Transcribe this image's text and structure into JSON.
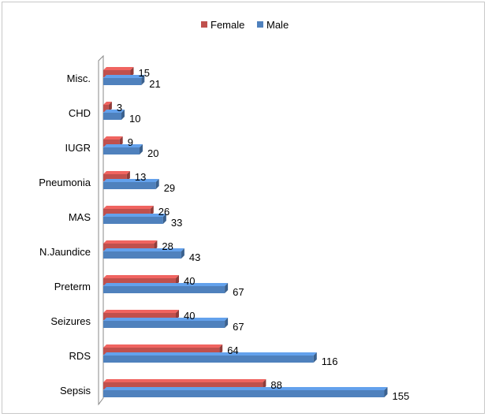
{
  "chart_data": {
    "type": "bar",
    "orientation": "horizontal",
    "categories": [
      "Sepsis",
      "RDS",
      "Seizures",
      "Preterm",
      "N.Jaundice",
      "MAS",
      "Pneumonia",
      "IUGR",
      "CHD",
      "Misc."
    ],
    "series": [
      {
        "name": "Female",
        "color": "#c0504d",
        "values": [
          88,
          64,
          40,
          40,
          28,
          26,
          13,
          9,
          3,
          15
        ]
      },
      {
        "name": "Male",
        "color": "#4f81bd",
        "values": [
          155,
          116,
          67,
          67,
          43,
          33,
          29,
          20,
          10,
          21
        ]
      }
    ],
    "title": "",
    "xlabel": "",
    "ylabel": "",
    "xlim": [
      0,
      160
    ],
    "grid": false,
    "legend_position": "top",
    "data_labels": true,
    "style": "3d"
  }
}
